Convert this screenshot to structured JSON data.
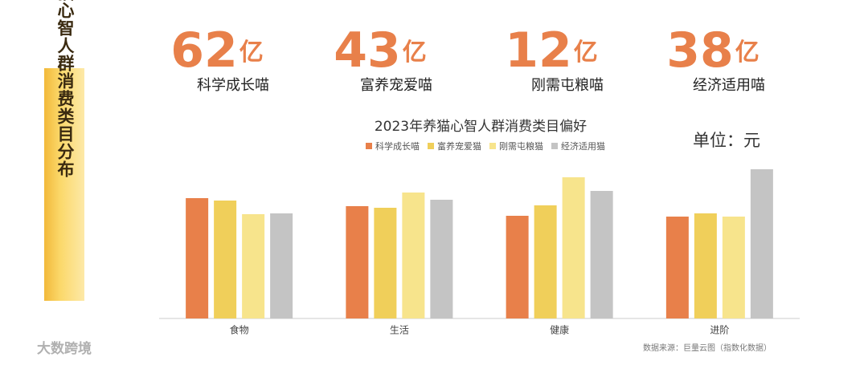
{
  "side_title": "养猫心智人群消费类目分布",
  "stats": [
    {
      "value": 62,
      "unit": "亿",
      "label": "科学成长喵"
    },
    {
      "value": 43,
      "unit": "亿",
      "label": "富养宠爱喵"
    },
    {
      "value": 12,
      "unit": "亿",
      "label": "刚需屯粮喵"
    },
    {
      "value": 38,
      "unit": "亿",
      "label": "经济适用喵"
    }
  ],
  "chart_data": {
    "type": "bar",
    "title": "2023年养猫心智人群消费类目偏好",
    "unit_label": "单位：元",
    "categories": [
      "食物",
      "生活",
      "健康",
      "进阶"
    ],
    "series": [
      {
        "name": "科学成长喵",
        "color": "#e8804a",
        "values": [
          150,
          140,
          128,
          127
        ]
      },
      {
        "name": "富养宠爱猫",
        "color": "#f0cf5a",
        "values": [
          147,
          138,
          141,
          131
        ]
      },
      {
        "name": "刚需屯粮猫",
        "color": "#f7e48c",
        "values": [
          130,
          157,
          176,
          127
        ]
      },
      {
        "name": "经济适用猫",
        "color": "#c4c4c4",
        "values": [
          131,
          148,
          159,
          186
        ]
      }
    ]
  },
  "source": "数据来源：巨量云图（指数化数据）",
  "logo": "大数跨境"
}
